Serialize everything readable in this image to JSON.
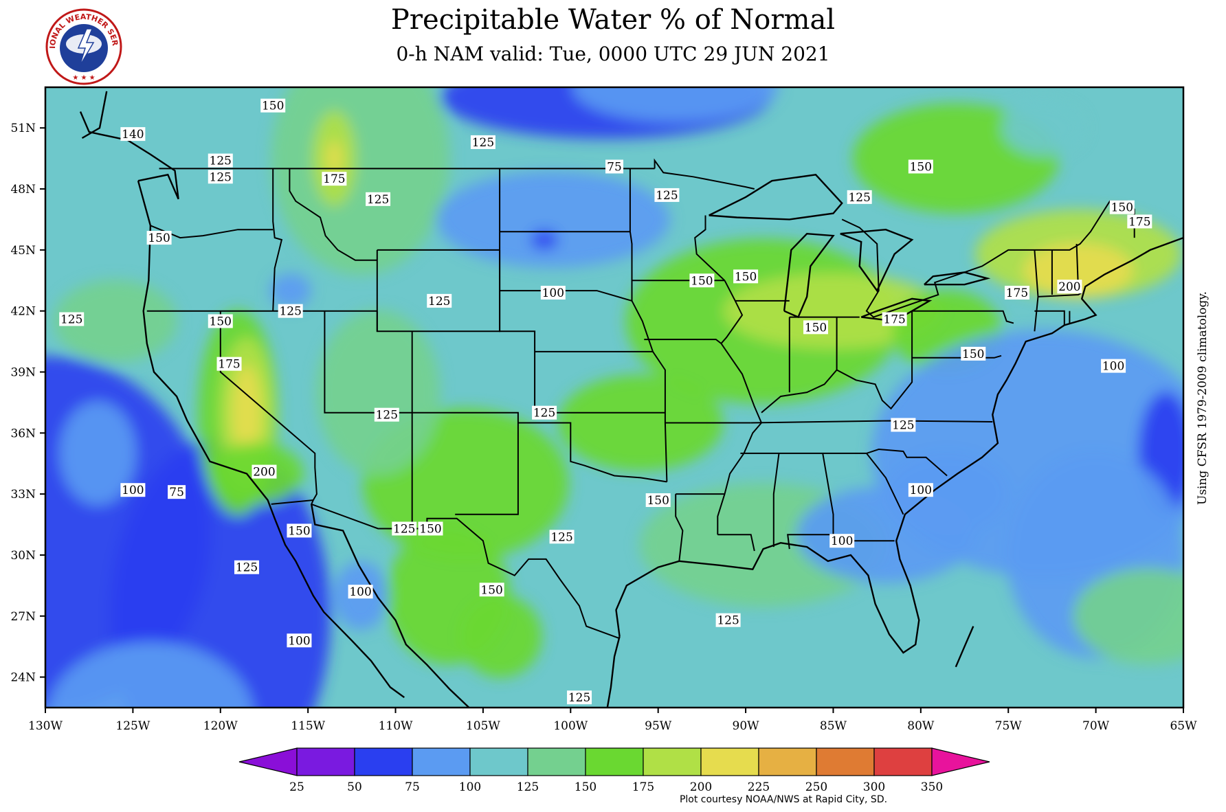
{
  "header": {
    "title": "Precipitable Water % of Normal",
    "subtitle": "0-h NAM valid: Tue, 0000 UTC 29 JUN 2021"
  },
  "logo": {
    "text": "NATIONAL WEATHER SERVICE",
    "icon": "nws-logo-icon"
  },
  "side_note": "Using CFSR 1979-2009 climatology.",
  "credit": "Plot courtesy NOAA/NWS at Rapid City, SD.",
  "map": {
    "lat_labels": [
      "51N",
      "48N",
      "45N",
      "42N",
      "39N",
      "36N",
      "33N",
      "30N",
      "27N",
      "24N"
    ],
    "lon_labels": [
      "130W",
      "125W",
      "120W",
      "115W",
      "110W",
      "105W",
      "100W",
      "95W",
      "90W",
      "85W",
      "80W",
      "75W",
      "70W",
      "65W"
    ],
    "contour_labels": [
      {
        "text": "150",
        "lon": -117.0,
        "lat": 52.1
      },
      {
        "text": "140",
        "lon": -125.0,
        "lat": 50.7
      },
      {
        "text": "125",
        "lon": -105.0,
        "lat": 50.3
      },
      {
        "text": "125",
        "lon": -120.0,
        "lat": 49.4
      },
      {
        "text": "125",
        "lon": -120.0,
        "lat": 48.6
      },
      {
        "text": "175",
        "lon": -113.5,
        "lat": 48.5
      },
      {
        "text": "75",
        "lon": -97.5,
        "lat": 49.1
      },
      {
        "text": "150",
        "lon": -80.0,
        "lat": 49.1
      },
      {
        "text": "125",
        "lon": -111.0,
        "lat": 47.5
      },
      {
        "text": "125",
        "lon": -94.5,
        "lat": 47.7
      },
      {
        "text": "125",
        "lon": -83.5,
        "lat": 47.6
      },
      {
        "text": "150",
        "lon": -68.5,
        "lat": 47.1
      },
      {
        "text": "175",
        "lon": -67.5,
        "lat": 46.4
      },
      {
        "text": "150",
        "lon": -123.5,
        "lat": 45.6
      },
      {
        "text": "150",
        "lon": -92.5,
        "lat": 43.5
      },
      {
        "text": "150",
        "lon": -90.0,
        "lat": 43.7
      },
      {
        "text": "125",
        "lon": -107.5,
        "lat": 42.5
      },
      {
        "text": "100",
        "lon": -101.0,
        "lat": 42.9
      },
      {
        "text": "175",
        "lon": -74.5,
        "lat": 42.9
      },
      {
        "text": "200",
        "lon": -71.5,
        "lat": 43.2
      },
      {
        "text": "125",
        "lon": -116.0,
        "lat": 42.0
      },
      {
        "text": "150",
        "lon": -120.0,
        "lat": 41.5
      },
      {
        "text": "125",
        "lon": -128.5,
        "lat": 41.6
      },
      {
        "text": "175",
        "lon": -81.5,
        "lat": 41.6
      },
      {
        "text": "150",
        "lon": -86.0,
        "lat": 41.2
      },
      {
        "text": "175",
        "lon": -119.5,
        "lat": 39.4
      },
      {
        "text": "150",
        "lon": -77.0,
        "lat": 39.9
      },
      {
        "text": "100",
        "lon": -69.0,
        "lat": 39.3
      },
      {
        "text": "125",
        "lon": -110.5,
        "lat": 36.9
      },
      {
        "text": "125",
        "lon": -101.5,
        "lat": 37.0
      },
      {
        "text": "125",
        "lon": -81.0,
        "lat": 36.4
      },
      {
        "text": "200",
        "lon": -117.5,
        "lat": 34.1
      },
      {
        "text": "100",
        "lon": -125.0,
        "lat": 33.2
      },
      {
        "text": "75",
        "lon": -122.5,
        "lat": 33.1
      },
      {
        "text": "150",
        "lon": -95.0,
        "lat": 32.7
      },
      {
        "text": "100",
        "lon": -80.0,
        "lat": 33.2
      },
      {
        "text": "150",
        "lon": -115.5,
        "lat": 31.2
      },
      {
        "text": "125",
        "lon": -109.5,
        "lat": 31.3
      },
      {
        "text": "150",
        "lon": -108.0,
        "lat": 31.3
      },
      {
        "text": "125",
        "lon": -100.5,
        "lat": 30.9
      },
      {
        "text": "100",
        "lon": -84.5,
        "lat": 30.7
      },
      {
        "text": "125",
        "lon": -118.5,
        "lat": 29.4
      },
      {
        "text": "100",
        "lon": -112.0,
        "lat": 28.2
      },
      {
        "text": "150",
        "lon": -104.5,
        "lat": 28.3
      },
      {
        "text": "125",
        "lon": -91.0,
        "lat": 26.8
      },
      {
        "text": "100",
        "lon": -115.5,
        "lat": 25.8
      },
      {
        "text": "125",
        "lon": -99.5,
        "lat": 23.0
      }
    ]
  },
  "colorbar": {
    "levels": [
      "25",
      "50",
      "75",
      "100",
      "125",
      "150",
      "175",
      "200",
      "225",
      "250",
      "300",
      "350"
    ],
    "colors": [
      "#7a1ae0",
      "#2a3ff0",
      "#5b9bf2",
      "#6ec8cb",
      "#74d08f",
      "#6ad831",
      "#b0e046",
      "#e6dc4e",
      "#e6b043",
      "#df7b33",
      "#de4040",
      "#e31a9e"
    ],
    "under_color": "#8a0fd8",
    "over_color": "#e8139c"
  }
}
